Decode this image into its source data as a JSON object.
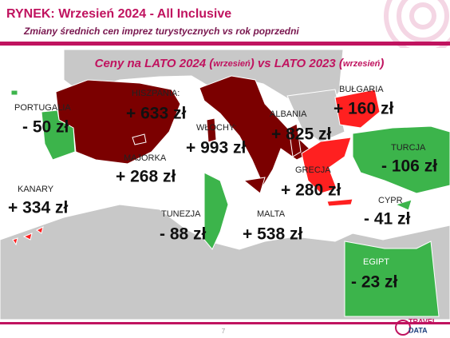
{
  "header": {
    "title": "RYNEK: Wrzesień 2024 - All Inclusive",
    "subtitle": "Zmiany średnich cen imprez turystycznych vs rok poprzedni"
  },
  "heading": {
    "parts": [
      "Ceny na LATO 2024 (",
      "wrzesień",
      ") vs  LATO 2023 (",
      "wrzesień",
      ")"
    ]
  },
  "countries": [
    {
      "name": "PORTUGALIA",
      "change": "- 50 zł"
    },
    {
      "name": "HISZPANIA:",
      "change": "+ 633 zł"
    },
    {
      "name": "WŁOCHY:",
      "change": "+ 993 zł"
    },
    {
      "name": "ALBANIA",
      "change": "+ 825 zł"
    },
    {
      "name": "BUŁGARIA",
      "change": "+ 160 zł"
    },
    {
      "name": "TURCJA",
      "change": "- 106 zł"
    },
    {
      "name": "MAJORKA",
      "change": "+ 268 zł"
    },
    {
      "name": "GRECJA",
      "change": "+ 280 zł"
    },
    {
      "name": "KANARY",
      "change": "+ 334 zł"
    },
    {
      "name": "CYPR",
      "change": "- 41 zł"
    },
    {
      "name": "TUNEZJA",
      "change": "- 88 zł"
    },
    {
      "name": "MALTA",
      "change": "+ 538 zł"
    },
    {
      "name": "EGIPT",
      "change": "- 23 zł"
    }
  ],
  "footer": {
    "page": "7",
    "logo": [
      "TRAVEL",
      "DATA"
    ]
  }
}
